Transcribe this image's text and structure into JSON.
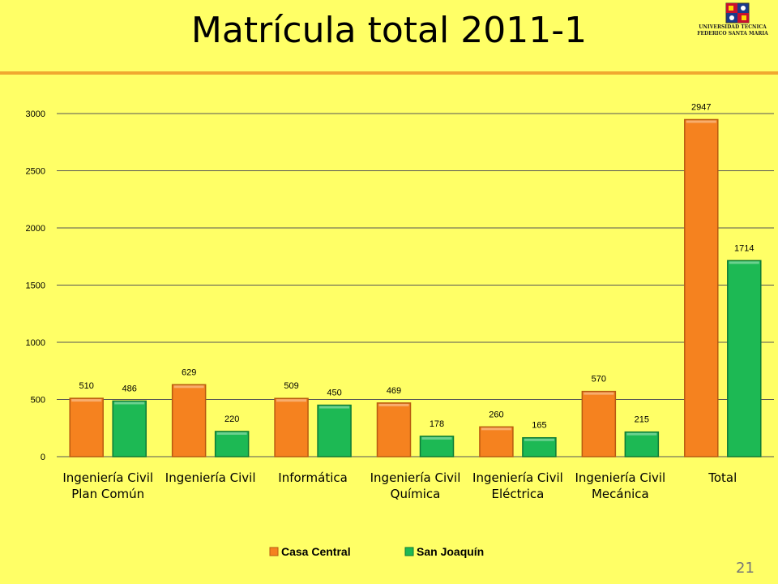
{
  "slide": {
    "title": "Matrícula total 2011-1",
    "page_number": "21",
    "logo_line1": "UNIVERSIDAD TECNICA",
    "logo_line2": "FEDERICO SANTA MARIA"
  },
  "colors": {
    "background": "#ffff66",
    "accent_rule": "#f0a830",
    "casa_central": "#f5821f",
    "san_joaquin": "#1db954"
  },
  "chart_data": {
    "type": "bar",
    "categories": [
      [
        "Ingeniería Civil",
        "Plan Común"
      ],
      [
        "Ingeniería Civil"
      ],
      [
        "Informática"
      ],
      [
        "Ingeniería Civil",
        "Química"
      ],
      [
        "Ingeniería Civil",
        "Eléctrica"
      ],
      [
        "Ingeniería Civil",
        "Mecánica"
      ],
      [
        "Total"
      ]
    ],
    "series": [
      {
        "name": "Casa Central",
        "values": [
          510,
          629,
          509,
          469,
          260,
          570,
          2947
        ]
      },
      {
        "name": "San Joaquín",
        "values": [
          486,
          220,
          450,
          178,
          165,
          215,
          1714
        ]
      }
    ],
    "ylim": [
      0,
      3000
    ],
    "yticks": [
      0,
      500,
      1000,
      1500,
      2000,
      2500,
      3000
    ],
    "grid": true,
    "legend": "bottom",
    "data_labels": true
  }
}
